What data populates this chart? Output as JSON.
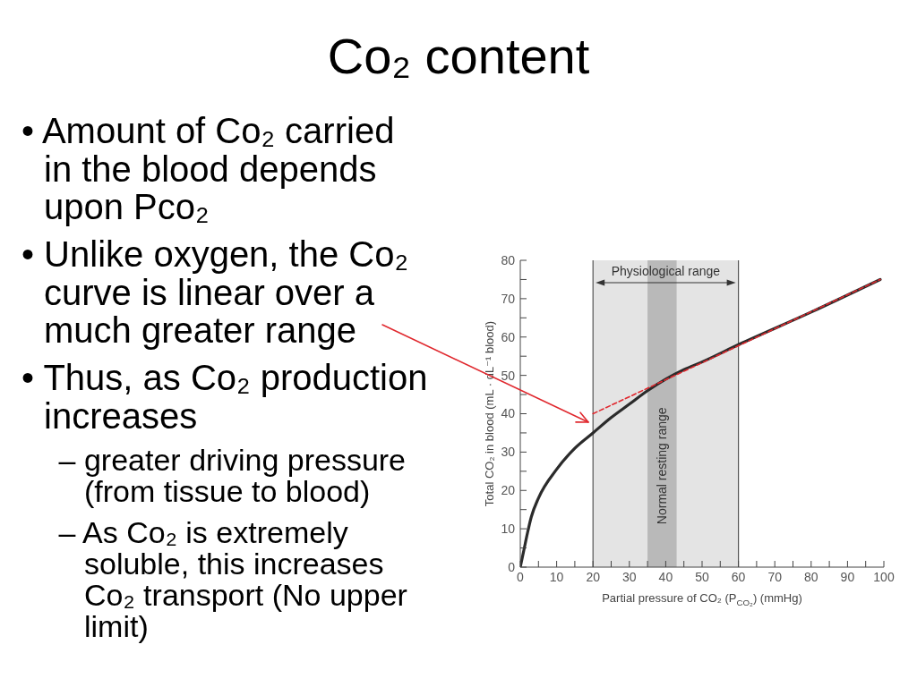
{
  "chart_data": {
    "type": "line",
    "title": "Co₂ content",
    "xlabel": "Partial pressure of CO₂ (P$_{CO₂}$) (mmHg)",
    "ylabel": "Total CO₂ in blood (mL · dL⁻¹ blood)",
    "annotations": [
      "• Amount of Co₂ carried in the blood depends upon Pco₂",
      "• Unlike oxygen, the Co₂ curve is linear over a much greater range",
      "• Thus, as Co₂ production increases",
      "– greater driving pressure (from tissue to blood)",
      "– As Co₂ is extremely soluble, this increases Co₂ transport (No upper limit)"
    ],
    "series": [
      {
        "color": "#2b2b2b",
        "x": [
          0,
          1,
          2,
          3,
          5,
          10,
          15,
          20,
          25,
          30,
          35,
          40,
          45,
          50,
          60,
          80,
          99
        ],
        "values": [
          0,
          4.5,
          9,
          13,
          18,
          25.5,
          31,
          35,
          39,
          42.5,
          46,
          49,
          51.5,
          53.5,
          58,
          66.5,
          75
        ]
      },
      {
        "type": "line",
        "color": "#e0282e",
        "line_style": "dashed",
        "x": [
          20,
          99
        ],
        "values": [
          40,
          75
        ]
      }
    ],
    "xlim": [
      0,
      100
    ],
    "ylim": [
      0,
      80
    ],
    "xticks": [
      0,
      {
        "value": 5,
        "label": null
      },
      10,
      {
        "value": 15,
        "label": null
      },
      20,
      {
        "value": 25,
        "label": null
      },
      30,
      {
        "value": 35,
        "label": null
      },
      40,
      {
        "value": 45,
        "label": null
      },
      50,
      {
        "value": 55,
        "label": null
      },
      60,
      {
        "value": 65,
        "label": null
      },
      70,
      {
        "value": 75,
        "label": null
      },
      80,
      {
        "value": 85,
        "label": null
      },
      90,
      {
        "value": 95,
        "label": null
      },
      100
    ],
    "yticks": [
      0,
      {
        "value": 5,
        "label": null
      },
      10,
      {
        "value": 15,
        "label": null
      },
      20,
      {
        "value": 25,
        "label": null
      },
      30,
      {
        "value": 35,
        "label": null
      },
      40,
      {
        "value": 45,
        "label": null
      },
      50,
      {
        "value": 55,
        "label": null
      },
      60,
      {
        "value": 65,
        "label": null
      },
      70,
      {
        "value": 75,
        "label": null
      },
      80
    ],
    "bands": [
      {
        "axis": "x",
        "from": 20,
        "to": 60,
        "label": "Physiological range",
        "color": "#e4e4e4"
      },
      {
        "axis": "x",
        "from": 35,
        "to": 43,
        "label": "Normal resting range",
        "color": "#b9b9b9"
      }
    ],
    "marker": "none"
  }
}
